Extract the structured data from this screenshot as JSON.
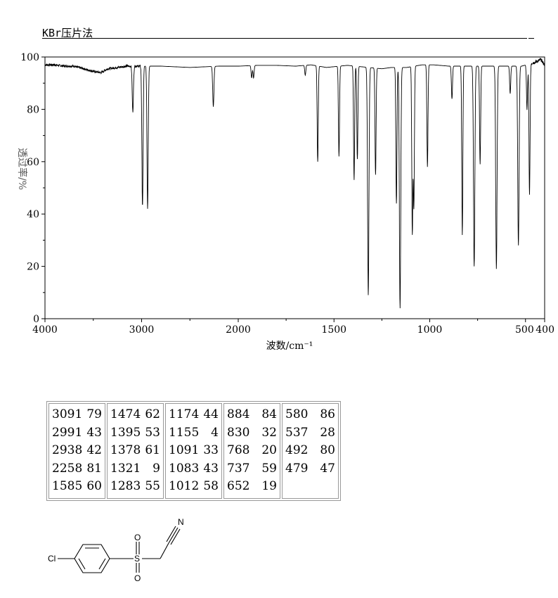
{
  "header": {
    "method": "KBr压片法"
  },
  "chart_data": {
    "type": "line",
    "xlabel": "波数/cm⁻¹",
    "ylabel": "透过率/%",
    "xlim": [
      4000,
      400
    ],
    "ylim": [
      0,
      100
    ],
    "x_ticks": [
      {
        "value": 4000,
        "label": "4000"
      },
      {
        "value": 3000,
        "label": "3000"
      },
      {
        "value": 2000,
        "label": "2000"
      },
      {
        "value": 1500,
        "label": "1500"
      },
      {
        "value": 1000,
        "label": "1000"
      },
      {
        "value": 500,
        "label": "500"
      },
      {
        "value": 400,
        "label": "400"
      }
    ],
    "y_ticks": [
      0,
      20,
      40,
      60,
      80,
      100
    ],
    "baseline": [
      [
        4000,
        97
      ],
      [
        3900,
        97
      ],
      [
        3800,
        96.5
      ],
      [
        3700,
        96.5
      ],
      [
        3600,
        95.5
      ],
      [
        3500,
        94.5
      ],
      [
        3420,
        94
      ],
      [
        3350,
        95.5
      ],
      [
        3250,
        96
      ],
      [
        3150,
        96.5
      ],
      [
        2800,
        96.5
      ],
      [
        2500,
        96
      ],
      [
        2200,
        96.5
      ],
      [
        2000,
        96.5
      ],
      [
        1900,
        96.8
      ],
      [
        1800,
        96.8
      ],
      [
        1700,
        96.5
      ],
      [
        1620,
        97
      ],
      [
        1540,
        96
      ],
      [
        1430,
        96.8
      ],
      [
        1250,
        95.5
      ],
      [
        1200,
        96
      ],
      [
        1120,
        96
      ],
      [
        1040,
        97
      ],
      [
        980,
        97
      ],
      [
        900,
        96.5
      ],
      [
        800,
        96.5
      ],
      [
        700,
        96.5
      ],
      [
        600,
        96.5
      ],
      [
        520,
        96.5
      ],
      [
        450,
        98
      ],
      [
        420,
        99
      ],
      [
        400,
        97
      ]
    ],
    "peaks": [
      {
        "wavenumber": 3091,
        "transmittance": 79
      },
      {
        "wavenumber": 2991,
        "transmittance": 43
      },
      {
        "wavenumber": 2938,
        "transmittance": 42
      },
      {
        "wavenumber": 2258,
        "transmittance": 81
      },
      {
        "wavenumber": 1585,
        "transmittance": 60
      },
      {
        "wavenumber": 1474,
        "transmittance": 62
      },
      {
        "wavenumber": 1395,
        "transmittance": 53
      },
      {
        "wavenumber": 1378,
        "transmittance": 61
      },
      {
        "wavenumber": 1321,
        "transmittance": 9
      },
      {
        "wavenumber": 1283,
        "transmittance": 55
      },
      {
        "wavenumber": 1174,
        "transmittance": 44
      },
      {
        "wavenumber": 1155,
        "transmittance": 4
      },
      {
        "wavenumber": 1091,
        "transmittance": 33
      },
      {
        "wavenumber": 1083,
        "transmittance": 43
      },
      {
        "wavenumber": 1012,
        "transmittance": 58
      },
      {
        "wavenumber": 884,
        "transmittance": 84
      },
      {
        "wavenumber": 830,
        "transmittance": 32
      },
      {
        "wavenumber": 768,
        "transmittance": 20
      },
      {
        "wavenumber": 737,
        "transmittance": 59
      },
      {
        "wavenumber": 652,
        "transmittance": 19
      },
      {
        "wavenumber": 580,
        "transmittance": 86
      },
      {
        "wavenumber": 537,
        "transmittance": 28
      },
      {
        "wavenumber": 492,
        "transmittance": 80
      },
      {
        "wavenumber": 479,
        "transmittance": 47
      }
    ],
    "minor_bands": [
      {
        "wavenumber": 1930,
        "transmittance": 92
      },
      {
        "wavenumber": 1650,
        "transmittance": 93
      },
      {
        "wavenumber": 1920,
        "transmittance": 92
      }
    ]
  },
  "peak_table": [
    [
      [
        "3091",
        "79"
      ],
      [
        "2991",
        "43"
      ],
      [
        "2938",
        "42"
      ],
      [
        "2258",
        "81"
      ],
      [
        "1585",
        "60"
      ]
    ],
    [
      [
        "1474",
        "62"
      ],
      [
        "1395",
        "53"
      ],
      [
        "1378",
        "61"
      ],
      [
        "1321",
        "9"
      ],
      [
        "1283",
        "55"
      ]
    ],
    [
      [
        "1174",
        "44"
      ],
      [
        "1155",
        "4"
      ],
      [
        "1091",
        "33"
      ],
      [
        "1083",
        "43"
      ],
      [
        "1012",
        "58"
      ]
    ],
    [
      [
        "884",
        "84"
      ],
      [
        "830",
        "32"
      ],
      [
        "768",
        "20"
      ],
      [
        "737",
        "59"
      ],
      [
        "652",
        "19"
      ]
    ],
    [
      [
        "580",
        "86"
      ],
      [
        "537",
        "28"
      ],
      [
        "492",
        "80"
      ],
      [
        "479",
        "47"
      ]
    ]
  ],
  "molecule": {
    "atoms": {
      "chlorine": "Cl",
      "sulfur": "S",
      "oxygen_top": "O",
      "oxygen_bottom": "O",
      "nitrogen": "N"
    }
  }
}
